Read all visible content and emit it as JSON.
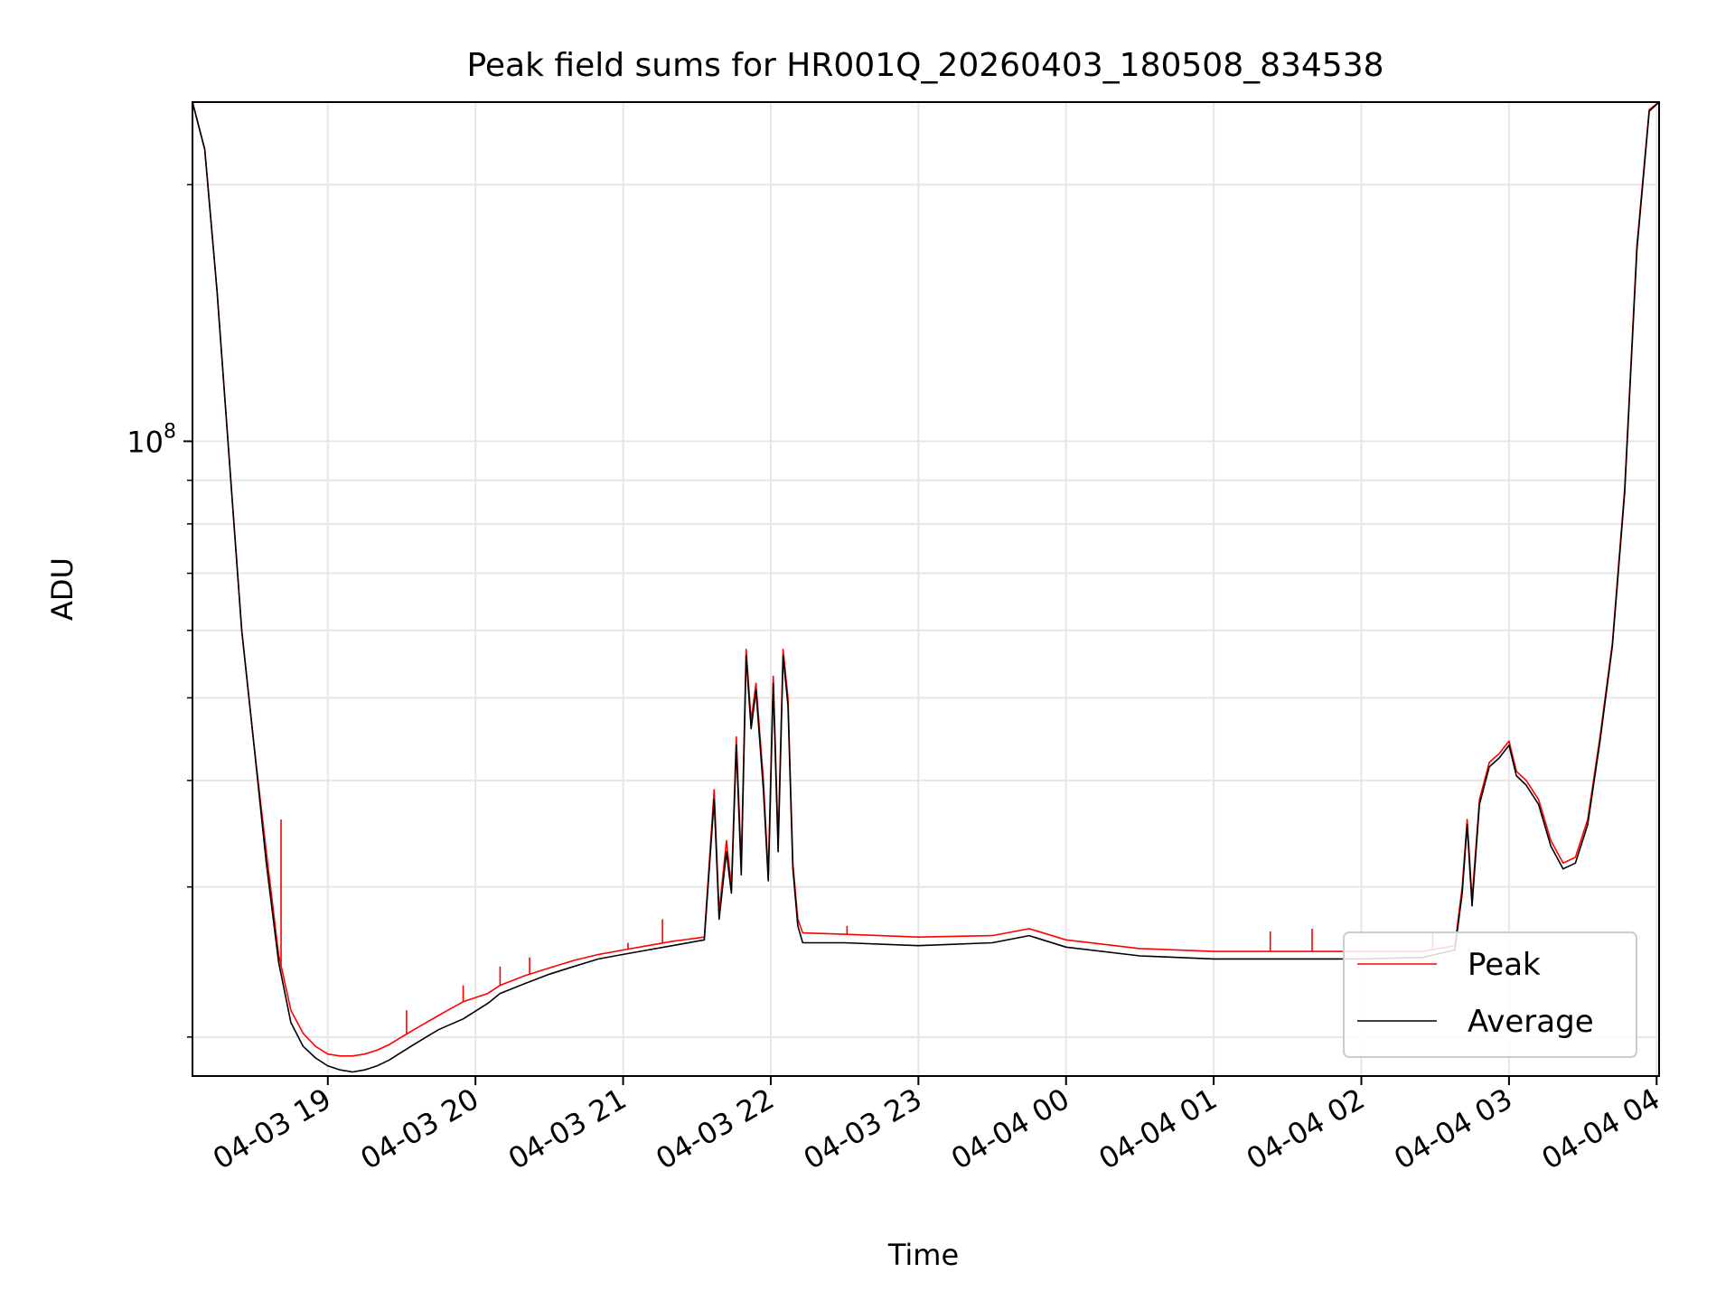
{
  "chart_data": {
    "type": "line",
    "title": "Peak field sums for HR001Q_20260403_180508_834538",
    "xlabel": "Time",
    "ylabel": "ADU",
    "x_type": "datetime",
    "xlim": [
      "2026-04-03 18:05",
      "2026-04-04 04:01"
    ],
    "yscale": "log",
    "ylim": [
      18000000,
      250000000
    ],
    "x_ticks": [
      {
        "t": "2026-04-03 19:00",
        "label": "04-03 19"
      },
      {
        "t": "2026-04-03 20:00",
        "label": "04-03 20"
      },
      {
        "t": "2026-04-03 21:00",
        "label": "04-03 21"
      },
      {
        "t": "2026-04-03 22:00",
        "label": "04-03 22"
      },
      {
        "t": "2026-04-03 23:00",
        "label": "04-03 23"
      },
      {
        "t": "2026-04-04 00:00",
        "label": "04-04 00"
      },
      {
        "t": "2026-04-04 01:00",
        "label": "04-04 01"
      },
      {
        "t": "2026-04-04 02:00",
        "label": "04-04 02"
      },
      {
        "t": "2026-04-04 03:00",
        "label": "04-04 03"
      },
      {
        "t": "2026-04-04 04:00",
        "label": "04-04 04"
      }
    ],
    "y_major_ticks": [
      {
        "value": 100000000,
        "base": "10",
        "exp": "8"
      }
    ],
    "y_minor_ticks": [
      20000000,
      30000000,
      40000000,
      50000000,
      60000000,
      70000000,
      80000000,
      90000000,
      200000000
    ],
    "grid": true,
    "legend_position": "bottom-right",
    "series": [
      {
        "name": "Peak",
        "color": "#ff0000",
        "points": [
          [
            "2026-04-03 18:05",
            250000000
          ],
          [
            "2026-04-03 18:10",
            220000000
          ],
          [
            "2026-04-03 18:15",
            150000000
          ],
          [
            "2026-04-03 18:20",
            95000000
          ],
          [
            "2026-04-03 18:25",
            60000000
          ],
          [
            "2026-04-03 18:30",
            44000000
          ],
          [
            "2026-04-03 18:35",
            33000000
          ],
          [
            "2026-04-03 18:40",
            25000000
          ],
          [
            "2026-04-03 18:45",
            21500000
          ],
          [
            "2026-04-03 18:50",
            20200000
          ],
          [
            "2026-04-03 18:55",
            19500000
          ],
          [
            "2026-04-03 19:00",
            19100000
          ],
          [
            "2026-04-03 19:05",
            19000000
          ],
          [
            "2026-04-03 19:10",
            19000000
          ],
          [
            "2026-04-03 19:15",
            19100000
          ],
          [
            "2026-04-03 19:20",
            19300000
          ],
          [
            "2026-04-03 19:25",
            19600000
          ],
          [
            "2026-04-03 19:30",
            20000000
          ],
          [
            "2026-04-03 19:35",
            20400000
          ],
          [
            "2026-04-03 19:40",
            20800000
          ],
          [
            "2026-04-03 19:45",
            21200000
          ],
          [
            "2026-04-03 19:50",
            21600000
          ],
          [
            "2026-04-03 19:55",
            22000000
          ],
          [
            "2026-04-03 20:05",
            22500000
          ],
          [
            "2026-04-03 20:10",
            23000000
          ],
          [
            "2026-04-03 20:20",
            23600000
          ],
          [
            "2026-04-03 20:30",
            24100000
          ],
          [
            "2026-04-03 20:40",
            24600000
          ],
          [
            "2026-04-03 20:50",
            25000000
          ],
          [
            "2026-04-03 21:00",
            25300000
          ],
          [
            "2026-04-03 21:10",
            25600000
          ],
          [
            "2026-04-03 21:20",
            25900000
          ],
          [
            "2026-04-03 21:33",
            26200000
          ],
          [
            "2026-04-03 21:37",
            39000000
          ],
          [
            "2026-04-03 21:39",
            28000000
          ],
          [
            "2026-04-03 21:42",
            34000000
          ],
          [
            "2026-04-03 21:44",
            30000000
          ],
          [
            "2026-04-03 21:46",
            45000000
          ],
          [
            "2026-04-03 21:48",
            32000000
          ],
          [
            "2026-04-03 21:50",
            57000000
          ],
          [
            "2026-04-03 21:52",
            47000000
          ],
          [
            "2026-04-03 21:54",
            52000000
          ],
          [
            "2026-04-03 21:57",
            40000000
          ],
          [
            "2026-04-03 21:59",
            31000000
          ],
          [
            "2026-04-03 22:01",
            53000000
          ],
          [
            "2026-04-03 22:03",
            34000000
          ],
          [
            "2026-04-03 22:05",
            57000000
          ],
          [
            "2026-04-03 22:07",
            50000000
          ],
          [
            "2026-04-03 22:09",
            32000000
          ],
          [
            "2026-04-03 22:11",
            27500000
          ],
          [
            "2026-04-03 22:13",
            26500000
          ],
          [
            "2026-04-03 22:30",
            26400000
          ],
          [
            "2026-04-03 23:00",
            26200000
          ],
          [
            "2026-04-03 23:30",
            26300000
          ],
          [
            "2026-04-03 23:45",
            26800000
          ],
          [
            "2026-04-04 00:00",
            26000000
          ],
          [
            "2026-04-04 00:30",
            25400000
          ],
          [
            "2026-04-04 01:00",
            25200000
          ],
          [
            "2026-04-04 01:30",
            25200000
          ],
          [
            "2026-04-04 02:00",
            25200000
          ],
          [
            "2026-04-04 02:25",
            25200000
          ],
          [
            "2026-04-04 02:38",
            25600000
          ],
          [
            "2026-04-04 02:41",
            30000000
          ],
          [
            "2026-04-04 02:43",
            36000000
          ],
          [
            "2026-04-04 02:45",
            29000000
          ],
          [
            "2026-04-04 02:48",
            38000000
          ],
          [
            "2026-04-04 02:52",
            42000000
          ],
          [
            "2026-04-04 02:56",
            43000000
          ],
          [
            "2026-04-04 03:00",
            44500000
          ],
          [
            "2026-04-04 03:03",
            41000000
          ],
          [
            "2026-04-04 03:07",
            40000000
          ],
          [
            "2026-04-04 03:12",
            38000000
          ],
          [
            "2026-04-04 03:17",
            34000000
          ],
          [
            "2026-04-04 03:22",
            32000000
          ],
          [
            "2026-04-04 03:27",
            32500000
          ],
          [
            "2026-04-04 03:32",
            36000000
          ],
          [
            "2026-04-04 03:37",
            45000000
          ],
          [
            "2026-04-04 03:42",
            58000000
          ],
          [
            "2026-04-04 03:47",
            88000000
          ],
          [
            "2026-04-04 03:52",
            170000000
          ],
          [
            "2026-04-04 03:57",
            245000000
          ],
          [
            "2026-04-04 04:01",
            250000000
          ]
        ],
        "spikes": [
          [
            "2026-04-03 18:41",
            36000000
          ],
          [
            "2026-04-03 19:32",
            21500000
          ],
          [
            "2026-04-03 19:55",
            23000000
          ],
          [
            "2026-04-03 20:10",
            24200000
          ],
          [
            "2026-04-03 20:22",
            24800000
          ],
          [
            "2026-04-03 21:02",
            25800000
          ],
          [
            "2026-04-03 21:16",
            27500000
          ],
          [
            "2026-04-03 22:31",
            27000000
          ],
          [
            "2026-04-04 01:23",
            26600000
          ],
          [
            "2026-04-04 01:40",
            26800000
          ],
          [
            "2026-04-04 02:29",
            26500000
          ]
        ]
      },
      {
        "name": "Average",
        "color": "#000000",
        "points": [
          [
            "2026-04-03 18:05",
            250000000
          ],
          [
            "2026-04-03 18:10",
            220000000
          ],
          [
            "2026-04-03 18:15",
            150000000
          ],
          [
            "2026-04-03 18:20",
            95000000
          ],
          [
            "2026-04-03 18:25",
            60000000
          ],
          [
            "2026-04-03 18:30",
            44000000
          ],
          [
            "2026-04-03 18:35",
            32000000
          ],
          [
            "2026-04-03 18:40",
            24500000
          ],
          [
            "2026-04-03 18:45",
            20800000
          ],
          [
            "2026-04-03 18:50",
            19500000
          ],
          [
            "2026-04-03 18:55",
            18900000
          ],
          [
            "2026-04-03 19:00",
            18500000
          ],
          [
            "2026-04-03 19:05",
            18300000
          ],
          [
            "2026-04-03 19:10",
            18200000
          ],
          [
            "2026-04-03 19:15",
            18300000
          ],
          [
            "2026-04-03 19:20",
            18500000
          ],
          [
            "2026-04-03 19:25",
            18800000
          ],
          [
            "2026-04-03 19:30",
            19200000
          ],
          [
            "2026-04-03 19:35",
            19600000
          ],
          [
            "2026-04-03 19:40",
            20000000
          ],
          [
            "2026-04-03 19:45",
            20400000
          ],
          [
            "2026-04-03 19:50",
            20700000
          ],
          [
            "2026-04-03 19:55",
            21000000
          ],
          [
            "2026-04-03 20:05",
            21900000
          ],
          [
            "2026-04-03 20:10",
            22500000
          ],
          [
            "2026-04-03 20:20",
            23100000
          ],
          [
            "2026-04-03 20:30",
            23700000
          ],
          [
            "2026-04-03 20:40",
            24200000
          ],
          [
            "2026-04-03 20:50",
            24700000
          ],
          [
            "2026-04-03 21:00",
            25000000
          ],
          [
            "2026-04-03 21:10",
            25300000
          ],
          [
            "2026-04-03 21:20",
            25600000
          ],
          [
            "2026-04-03 21:33",
            26000000
          ],
          [
            "2026-04-03 21:37",
            38000000
          ],
          [
            "2026-04-03 21:39",
            27500000
          ],
          [
            "2026-04-03 21:42",
            33000000
          ],
          [
            "2026-04-03 21:44",
            29500000
          ],
          [
            "2026-04-03 21:46",
            44000000
          ],
          [
            "2026-04-03 21:48",
            31000000
          ],
          [
            "2026-04-03 21:50",
            56000000
          ],
          [
            "2026-04-03 21:52",
            46000000
          ],
          [
            "2026-04-03 21:54",
            51000000
          ],
          [
            "2026-04-03 21:57",
            39000000
          ],
          [
            "2026-04-03 21:59",
            30500000
          ],
          [
            "2026-04-03 22:01",
            52000000
          ],
          [
            "2026-04-03 22:03",
            33000000
          ],
          [
            "2026-04-03 22:05",
            56000000
          ],
          [
            "2026-04-03 22:07",
            49000000
          ],
          [
            "2026-04-03 22:09",
            31500000
          ],
          [
            "2026-04-03 22:11",
            27000000
          ],
          [
            "2026-04-03 22:13",
            25800000
          ],
          [
            "2026-04-03 22:30",
            25800000
          ],
          [
            "2026-04-03 23:00",
            25600000
          ],
          [
            "2026-04-03 23:30",
            25800000
          ],
          [
            "2026-04-03 23:45",
            26300000
          ],
          [
            "2026-04-04 00:00",
            25500000
          ],
          [
            "2026-04-04 00:30",
            24900000
          ],
          [
            "2026-04-04 01:00",
            24700000
          ],
          [
            "2026-04-04 01:30",
            24700000
          ],
          [
            "2026-04-04 02:00",
            24700000
          ],
          [
            "2026-04-04 02:25",
            24800000
          ],
          [
            "2026-04-04 02:38",
            25300000
          ],
          [
            "2026-04-04 02:41",
            29500000
          ],
          [
            "2026-04-04 02:43",
            35500000
          ],
          [
            "2026-04-04 02:45",
            28500000
          ],
          [
            "2026-04-04 02:48",
            37500000
          ],
          [
            "2026-04-04 02:52",
            41500000
          ],
          [
            "2026-04-04 02:56",
            42500000
          ],
          [
            "2026-04-04 03:00",
            44000000
          ],
          [
            "2026-04-04 03:03",
            40500000
          ],
          [
            "2026-04-04 03:07",
            39500000
          ],
          [
            "2026-04-04 03:12",
            37500000
          ],
          [
            "2026-04-04 03:17",
            33500000
          ],
          [
            "2026-04-04 03:22",
            31500000
          ],
          [
            "2026-04-04 03:27",
            32000000
          ],
          [
            "2026-04-04 03:32",
            35500000
          ],
          [
            "2026-04-04 03:37",
            44500000
          ],
          [
            "2026-04-04 03:42",
            57500000
          ],
          [
            "2026-04-04 03:47",
            87000000
          ],
          [
            "2026-04-04 03:52",
            168000000
          ],
          [
            "2026-04-04 03:57",
            244000000
          ],
          [
            "2026-04-04 04:01",
            250000000
          ]
        ]
      }
    ]
  }
}
